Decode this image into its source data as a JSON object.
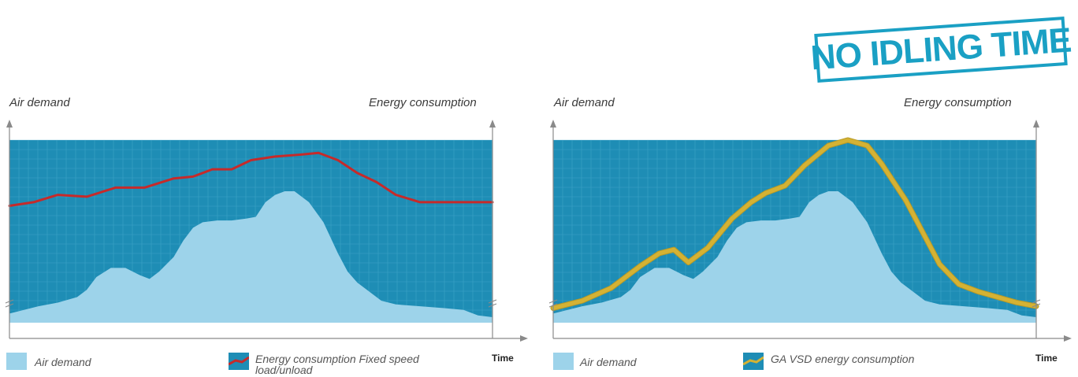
{
  "stamp": {
    "text": "NO IDLING TIME",
    "color": "#1aa0c4"
  },
  "colors": {
    "panel": "#1e8db5",
    "grid": "#4aaed0",
    "demand": "#9dd3ea",
    "fixed_speed_line": "#c62a2a",
    "vsd_line": "#d4b234",
    "axis": "#8a8a8a"
  },
  "chart_data": [
    {
      "type": "area",
      "ylabel_left": "Air demand",
      "ylabel_right": "Energy consumption",
      "xlabel": "Time",
      "xlim": [
        0,
        100
      ],
      "ylim": [
        0,
        100
      ],
      "grid": true,
      "series": [
        {
          "name": "Air demand",
          "kind": "area",
          "x": [
            0,
            3,
            6,
            10,
            14,
            16,
            18,
            21,
            24,
            27,
            29,
            31,
            34,
            36,
            38,
            40,
            43,
            46,
            49,
            51,
            53,
            55,
            57,
            59,
            62,
            65,
            68,
            70,
            72,
            75,
            77,
            80,
            85,
            90,
            94,
            97,
            100
          ],
          "y": [
            5,
            7,
            9,
            11,
            14,
            18,
            25,
            30,
            30,
            26,
            24,
            28,
            36,
            45,
            52,
            55,
            56,
            56,
            57,
            58,
            66,
            70,
            72,
            72,
            66,
            55,
            38,
            28,
            22,
            16,
            12,
            10,
            9,
            8,
            7,
            4,
            3
          ]
        },
        {
          "name": "Energy consumption Fixed speed load/unload",
          "kind": "line",
          "x": [
            0,
            5,
            10,
            16,
            22,
            28,
            34,
            38,
            42,
            46,
            50,
            55,
            60,
            64,
            68,
            72,
            76,
            80,
            85,
            90,
            95,
            100
          ],
          "y": [
            64,
            66,
            70,
            69,
            74,
            74,
            79,
            80,
            84,
            84,
            89,
            91,
            92,
            93,
            89,
            82,
            77,
            70,
            66,
            66,
            66,
            66
          ]
        }
      ]
    },
    {
      "type": "area",
      "ylabel_left": "Air demand",
      "ylabel_right": "Energy consumption",
      "xlabel": "Time",
      "xlim": [
        0,
        100
      ],
      "ylim": [
        0,
        100
      ],
      "grid": true,
      "series": [
        {
          "name": "Air demand",
          "kind": "area",
          "x": [
            0,
            3,
            6,
            10,
            14,
            16,
            18,
            21,
            24,
            27,
            29,
            31,
            34,
            36,
            38,
            40,
            43,
            46,
            49,
            51,
            53,
            55,
            57,
            59,
            62,
            65,
            68,
            70,
            72,
            75,
            77,
            80,
            85,
            90,
            94,
            97,
            100
          ],
          "y": [
            5,
            7,
            9,
            11,
            14,
            18,
            25,
            30,
            30,
            26,
            24,
            28,
            36,
            45,
            52,
            55,
            56,
            56,
            57,
            58,
            66,
            70,
            72,
            72,
            66,
            55,
            38,
            28,
            22,
            16,
            12,
            10,
            9,
            8,
            7,
            4,
            3
          ]
        },
        {
          "name": "GA VSD energy consumption",
          "kind": "line",
          "x": [
            0,
            6,
            12,
            18,
            22,
            25,
            28,
            32,
            37,
            41,
            44,
            48,
            52,
            57,
            61,
            65,
            68,
            70,
            73,
            76,
            80,
            84,
            88,
            92,
            96,
            100
          ],
          "y": [
            8,
            12,
            19,
            31,
            38,
            40,
            33,
            41,
            57,
            66,
            71,
            75,
            86,
            97,
            100,
            97,
            87,
            79,
            67,
            52,
            32,
            21,
            17,
            14,
            11,
            9
          ]
        }
      ]
    }
  ]
}
